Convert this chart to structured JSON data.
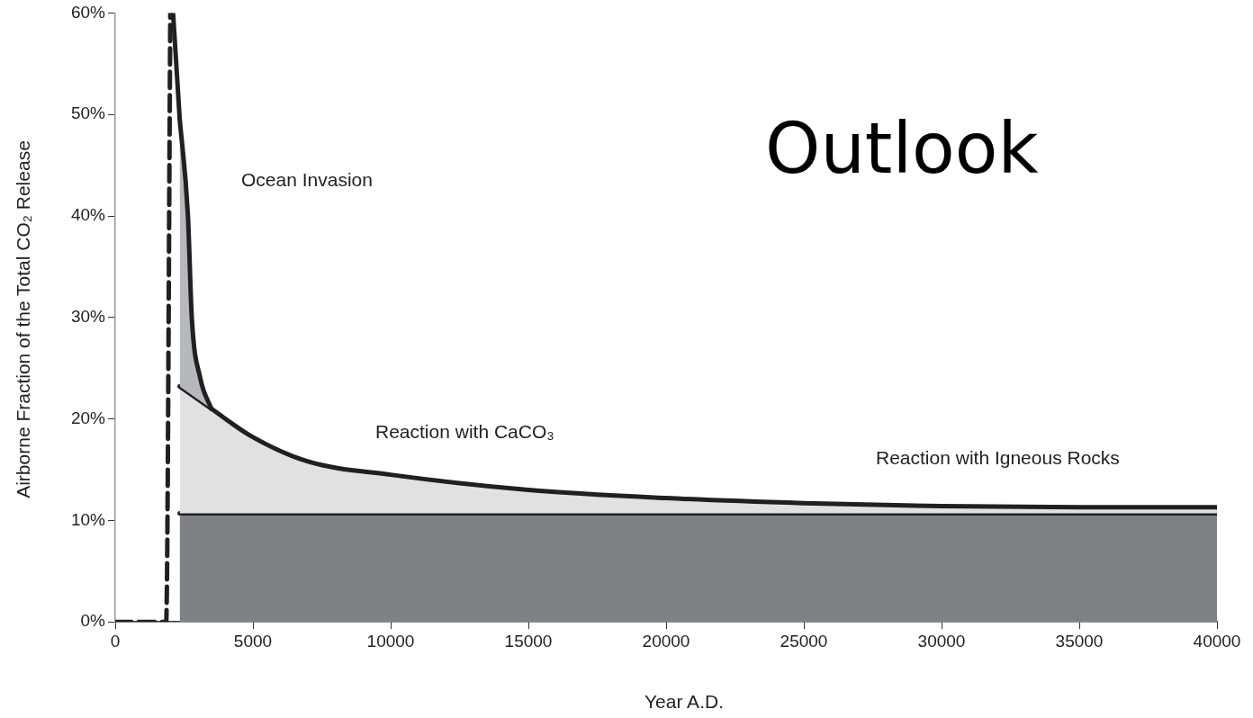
{
  "chart_data": {
    "type": "area",
    "xlabel": "Year A.D.",
    "ylabel": "Airborne Fraction of the Total CO₂ Release",
    "xlim": [
      0,
      40000
    ],
    "xticks": [
      0,
      5000,
      10000,
      15000,
      20000,
      25000,
      30000,
      35000,
      40000
    ],
    "ylim": [
      0,
      60
    ],
    "yticks": [
      {
        "value": 0,
        "label": "0%"
      },
      {
        "value": 10,
        "label": "10%"
      },
      {
        "value": 20,
        "label": "20%"
      },
      {
        "value": 30,
        "label": "30%"
      },
      {
        "value": 40,
        "label": "40%"
      },
      {
        "value": 50,
        "label": "50%"
      },
      {
        "value": 60,
        "label": "60%"
      }
    ],
    "grid": false,
    "legend": false,
    "marker": "none",
    "series": [
      {
        "type": "line",
        "color": "#231f20",
        "x": [
          2100,
          2340
        ],
        "values": [
          60,
          49.6
        ]
      },
      {
        "type": "area",
        "color": "#b5b8bc",
        "x": [
          2340,
          2640,
          2780,
          3090,
          3490
        ],
        "values": [
          49.6,
          40,
          30,
          24,
          21
        ]
      },
      {
        "type": "area",
        "color": "#dfe1e3",
        "x": [
          2340,
          3490,
          5000,
          7000,
          10000,
          15000,
          20000,
          25000,
          30000,
          35000,
          40000
        ],
        "values": [
          23.2,
          21,
          18.2,
          15.8,
          14.5,
          13,
          12.2,
          11.7,
          11.4,
          11.3,
          11.3
        ]
      },
      {
        "type": "area",
        "color": "#7f8285",
        "x": [
          2340,
          40000
        ],
        "values": [
          10.7,
          10.7
        ]
      },
      {
        "type": "line",
        "color": "#231f20",
        "line_style": "dashed",
        "x": [
          0,
          1850,
          2000
        ],
        "values": [
          0,
          0,
          60
        ]
      }
    ],
    "annotations": [
      "Outlook",
      "Ocean Invasion",
      "Reaction with CaCO₃",
      "Reaction with Igneous Rocks"
    ]
  }
}
